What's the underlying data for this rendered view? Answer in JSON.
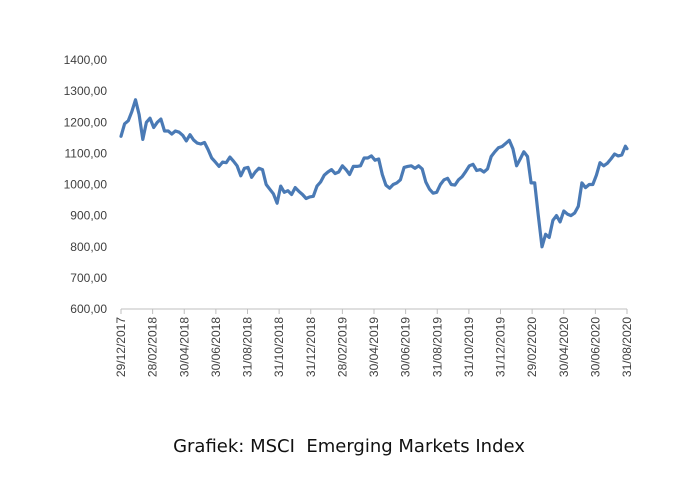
{
  "caption": "Grafiek: MSCI  Emerging Markets Index",
  "chart_data": {
    "type": "line",
    "title": "",
    "xlabel": "",
    "ylabel": "",
    "ylim": [
      600,
      1400
    ],
    "yticks": [
      "600,00",
      "700,00",
      "800,00",
      "900,00",
      "1000,00",
      "1100,00",
      "1200,00",
      "1300,00",
      "1400,00"
    ],
    "xlim": [
      "2017-12-29",
      "2020-08-31"
    ],
    "xticks": [
      "29/12/2017",
      "28/02/2018",
      "30/04/2018",
      "30/06/2018",
      "31/08/2018",
      "31/10/2018",
      "31/12/2018",
      "28/02/2019",
      "30/04/2019",
      "30/06/2019",
      "31/08/2019",
      "31/10/2019",
      "31/12/2019",
      "29/02/2020",
      "30/04/2020",
      "30/06/2020",
      "31/08/2020"
    ],
    "grid": false,
    "line_color": "#4a7ab5",
    "series": [
      {
        "points": [
          [
            "2017-12-29",
            1155
          ],
          [
            "2018-01-05",
            1195
          ],
          [
            "2018-01-12",
            1205
          ],
          [
            "2018-01-19",
            1235
          ],
          [
            "2018-01-26",
            1272
          ],
          [
            "2018-02-02",
            1225
          ],
          [
            "2018-02-09",
            1145
          ],
          [
            "2018-02-16",
            1200
          ],
          [
            "2018-02-23",
            1213
          ],
          [
            "2018-03-02",
            1183
          ],
          [
            "2018-03-09",
            1200
          ],
          [
            "2018-03-16",
            1210
          ],
          [
            "2018-03-23",
            1172
          ],
          [
            "2018-03-30",
            1172
          ],
          [
            "2018-04-06",
            1162
          ],
          [
            "2018-04-13",
            1172
          ],
          [
            "2018-04-20",
            1168
          ],
          [
            "2018-04-27",
            1158
          ],
          [
            "2018-05-04",
            1140
          ],
          [
            "2018-05-11",
            1160
          ],
          [
            "2018-05-18",
            1143
          ],
          [
            "2018-05-25",
            1133
          ],
          [
            "2018-06-01",
            1130
          ],
          [
            "2018-06-08",
            1135
          ],
          [
            "2018-06-15",
            1112
          ],
          [
            "2018-06-22",
            1085
          ],
          [
            "2018-06-29",
            1072
          ],
          [
            "2018-07-06",
            1058
          ],
          [
            "2018-07-13",
            1072
          ],
          [
            "2018-07-20",
            1070
          ],
          [
            "2018-07-27",
            1088
          ],
          [
            "2018-08-03",
            1075
          ],
          [
            "2018-08-10",
            1060
          ],
          [
            "2018-08-17",
            1028
          ],
          [
            "2018-08-24",
            1052
          ],
          [
            "2018-08-31",
            1055
          ],
          [
            "2018-09-07",
            1023
          ],
          [
            "2018-09-14",
            1040
          ],
          [
            "2018-09-21",
            1052
          ],
          [
            "2018-09-28",
            1048
          ],
          [
            "2018-10-05",
            1000
          ],
          [
            "2018-10-12",
            985
          ],
          [
            "2018-10-19",
            970
          ],
          [
            "2018-10-26",
            940
          ],
          [
            "2018-11-02",
            995
          ],
          [
            "2018-11-09",
            975
          ],
          [
            "2018-11-16",
            980
          ],
          [
            "2018-11-23",
            968
          ],
          [
            "2018-11-30",
            990
          ],
          [
            "2018-12-07",
            978
          ],
          [
            "2018-12-14",
            968
          ],
          [
            "2018-12-21",
            955
          ],
          [
            "2018-12-28",
            960
          ],
          [
            "2019-01-04",
            962
          ],
          [
            "2019-01-11",
            995
          ],
          [
            "2019-01-18",
            1008
          ],
          [
            "2019-01-25",
            1030
          ],
          [
            "2019-02-01",
            1040
          ],
          [
            "2019-02-08",
            1048
          ],
          [
            "2019-02-15",
            1035
          ],
          [
            "2019-02-22",
            1040
          ],
          [
            "2019-03-01",
            1060
          ],
          [
            "2019-03-08",
            1048
          ],
          [
            "2019-03-15",
            1032
          ],
          [
            "2019-03-22",
            1058
          ],
          [
            "2019-03-29",
            1058
          ],
          [
            "2019-04-05",
            1060
          ],
          [
            "2019-04-12",
            1085
          ],
          [
            "2019-04-19",
            1085
          ],
          [
            "2019-04-26",
            1092
          ],
          [
            "2019-05-03",
            1078
          ],
          [
            "2019-05-10",
            1082
          ],
          [
            "2019-05-17",
            1032
          ],
          [
            "2019-05-24",
            998
          ],
          [
            "2019-05-31",
            988
          ],
          [
            "2019-06-07",
            1000
          ],
          [
            "2019-06-14",
            1005
          ],
          [
            "2019-06-21",
            1015
          ],
          [
            "2019-06-28",
            1055
          ],
          [
            "2019-07-05",
            1058
          ],
          [
            "2019-07-12",
            1060
          ],
          [
            "2019-07-19",
            1052
          ],
          [
            "2019-07-26",
            1060
          ],
          [
            "2019-08-02",
            1050
          ],
          [
            "2019-08-09",
            1008
          ],
          [
            "2019-08-16",
            985
          ],
          [
            "2019-08-23",
            972
          ],
          [
            "2019-08-30",
            975
          ],
          [
            "2019-09-06",
            1000
          ],
          [
            "2019-09-13",
            1015
          ],
          [
            "2019-09-20",
            1020
          ],
          [
            "2019-09-27",
            1000
          ],
          [
            "2019-10-04",
            998
          ],
          [
            "2019-10-11",
            1015
          ],
          [
            "2019-10-18",
            1025
          ],
          [
            "2019-10-25",
            1042
          ],
          [
            "2019-11-01",
            1060
          ],
          [
            "2019-11-08",
            1065
          ],
          [
            "2019-11-15",
            1045
          ],
          [
            "2019-11-22",
            1048
          ],
          [
            "2019-11-29",
            1040
          ],
          [
            "2019-12-06",
            1050
          ],
          [
            "2019-12-13",
            1090
          ],
          [
            "2019-12-20",
            1105
          ],
          [
            "2019-12-27",
            1118
          ],
          [
            "2020-01-03",
            1122
          ],
          [
            "2020-01-10",
            1132
          ],
          [
            "2020-01-17",
            1142
          ],
          [
            "2020-01-24",
            1115
          ],
          [
            "2020-01-31",
            1060
          ],
          [
            "2020-02-07",
            1082
          ],
          [
            "2020-02-14",
            1105
          ],
          [
            "2020-02-21",
            1090
          ],
          [
            "2020-02-28",
            1005
          ],
          [
            "2020-03-06",
            1005
          ],
          [
            "2020-03-13",
            900
          ],
          [
            "2020-03-20",
            800
          ],
          [
            "2020-03-27",
            840
          ],
          [
            "2020-04-03",
            830
          ],
          [
            "2020-04-10",
            885
          ],
          [
            "2020-04-17",
            900
          ],
          [
            "2020-04-24",
            880
          ],
          [
            "2020-05-01",
            915
          ],
          [
            "2020-05-08",
            905
          ],
          [
            "2020-05-15",
            900
          ],
          [
            "2020-05-22",
            908
          ],
          [
            "2020-05-29",
            930
          ],
          [
            "2020-06-05",
            1005
          ],
          [
            "2020-06-12",
            990
          ],
          [
            "2020-06-19",
            1000
          ],
          [
            "2020-06-26",
            1000
          ],
          [
            "2020-07-03",
            1030
          ],
          [
            "2020-07-10",
            1070
          ],
          [
            "2020-07-17",
            1060
          ],
          [
            "2020-07-24",
            1068
          ],
          [
            "2020-07-31",
            1082
          ],
          [
            "2020-08-07",
            1098
          ],
          [
            "2020-08-14",
            1092
          ],
          [
            "2020-08-21",
            1095
          ],
          [
            "2020-08-28",
            1123
          ],
          [
            "2020-08-31",
            1115
          ]
        ]
      }
    ]
  }
}
